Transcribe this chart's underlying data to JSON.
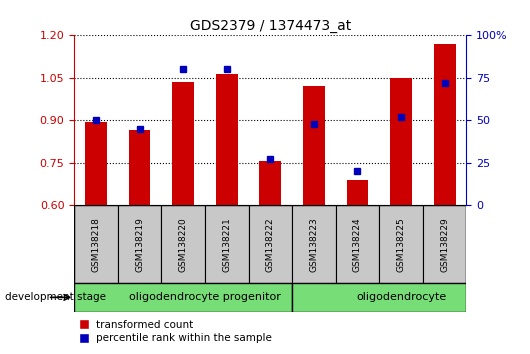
{
  "title": "GDS2379 / 1374473_at",
  "samples": [
    "GSM138218",
    "GSM138219",
    "GSM138220",
    "GSM138221",
    "GSM138222",
    "GSM138223",
    "GSM138224",
    "GSM138225",
    "GSM138229"
  ],
  "transformed_count": [
    0.895,
    0.865,
    1.035,
    1.065,
    0.755,
    1.02,
    0.69,
    1.05,
    1.17
  ],
  "percentile_rank": [
    50,
    45,
    80,
    80,
    27,
    48,
    20,
    52,
    72
  ],
  "ylim_left": [
    0.6,
    1.2
  ],
  "ylim_right": [
    0,
    100
  ],
  "yticks_left": [
    0.6,
    0.75,
    0.9,
    1.05,
    1.2
  ],
  "yticks_right": [
    0,
    25,
    50,
    75,
    100
  ],
  "groups": [
    {
      "label": "oligodendrocyte progenitor",
      "start": 0,
      "end": 5
    },
    {
      "label": "oligodendrocyte",
      "start": 5,
      "end": 9
    }
  ],
  "bar_color": "#CC0000",
  "dot_color": "#0000BB",
  "plot_bg_color": "#ffffff",
  "tick_label_color_left": "#CC0000",
  "tick_label_color_right": "#0000BB",
  "legend_labels": [
    "transformed count",
    "percentile rank within the sample"
  ],
  "green_color": "#77DD77",
  "gray_color": "#C8C8C8",
  "grid_linestyle": "dotted",
  "bar_width": 0.5
}
